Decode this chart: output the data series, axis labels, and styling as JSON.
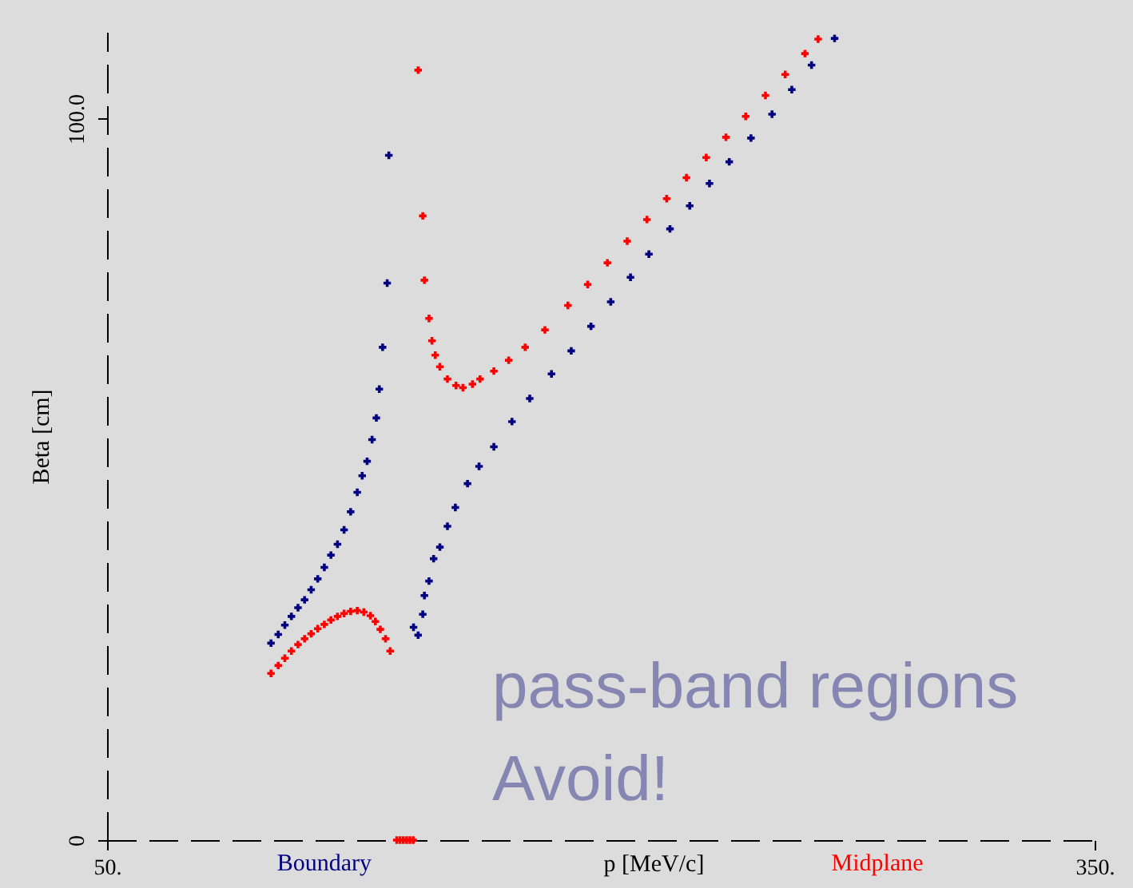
{
  "chart_data": {
    "type": "scatter",
    "xlabel": "p  [MeV/c]",
    "ylabel": "Beta  [cm]",
    "xlim": [
      50,
      350
    ],
    "ylim": [
      0,
      112
    ],
    "xticks": [
      {
        "value": 50,
        "label": "50."
      },
      {
        "value": 350,
        "label": "350."
      }
    ],
    "yticks": [
      0,
      {
        "value": 100,
        "label": "100.0"
      }
    ],
    "grid": false,
    "marker": "cross",
    "legend": "bottom",
    "annotations": [
      "pass-band regions",
      "Avoid!"
    ],
    "series": [
      {
        "name": "Boundary",
        "color": "#000080",
        "x": [
          99.8,
          102,
          104,
          106,
          108,
          110,
          112,
          114,
          116,
          118,
          120,
          122,
          124,
          126,
          127.5,
          129,
          130.5,
          131.8,
          132.7,
          133.7,
          135.1,
          135.6,
          143.1,
          144.5,
          145.9,
          146.4,
          147.8,
          149.2,
          151.1,
          153.4,
          155.8,
          159.5,
          163,
          167.5,
          173,
          178.4,
          185,
          191,
          197,
          203,
          209,
          214.6,
          221,
          227,
          233,
          239,
          245.6,
          252,
          258,
          264,
          271
        ],
        "values": [
          27.3,
          28.5,
          29.8,
          31,
          32.2,
          33.3,
          34.7,
          36.2,
          37.8,
          39.5,
          41,
          43,
          45.5,
          48.2,
          50.5,
          52.5,
          55.5,
          58.5,
          62.5,
          68.3,
          77.2,
          94.9,
          29.5,
          28.4,
          31.3,
          33.9,
          35.9,
          39,
          40.6,
          43.5,
          46.1,
          49.4,
          51.8,
          54.5,
          58,
          61.2,
          64.6,
          67.8,
          71.2,
          74.6,
          78,
          81.2,
          84.7,
          87.9,
          91,
          94,
          97.3,
          100.6,
          104,
          107.4,
          111.1
        ]
      },
      {
        "name": "Midplane",
        "color": "#ff0000",
        "x": [
          99.8,
          102,
          104,
          106,
          108,
          110,
          112,
          114,
          116,
          118,
          120,
          122,
          124,
          126,
          128,
          130,
          131.5,
          133,
          134.6,
          136,
          138,
          139,
          140,
          141,
          142,
          143,
          144.5,
          145.9,
          146.4,
          147.8,
          148.7,
          149.7,
          151.1,
          153.4,
          156,
          158.1,
          161,
          163.3,
          167.5,
          172,
          177,
          183,
          190,
          196,
          202,
          208,
          214,
          220,
          226,
          232,
          238,
          244,
          250,
          256,
          262,
          266
        ],
        "values": [
          23.1,
          24.2,
          25.2,
          26.2,
          27.1,
          27.9,
          28.6,
          29.3,
          29.9,
          30.5,
          31,
          31.4,
          31.7,
          31.8,
          31.6,
          31.1,
          30.3,
          29.2,
          27.9,
          26.2,
          0,
          0,
          0,
          0,
          0,
          0,
          106.7,
          86.5,
          77.6,
          72.3,
          69.2,
          67.2,
          65.6,
          63.9,
          63,
          62.7,
          63.2,
          63.9,
          65,
          66.5,
          68.3,
          70.7,
          74.1,
          77,
          80,
          83,
          86,
          88.9,
          91.8,
          94.6,
          97.4,
          100.3,
          103.2,
          106.1,
          109,
          111
        ]
      }
    ]
  }
}
